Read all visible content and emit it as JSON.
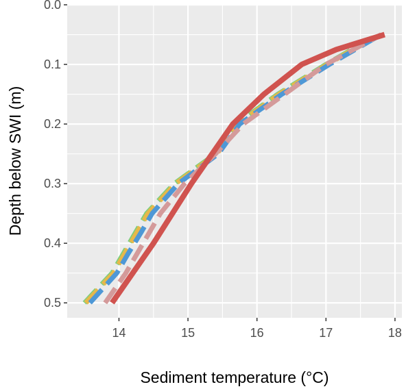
{
  "chart_data": {
    "type": "line",
    "xlabel": "Sediment temperature (°C)",
    "ylabel": "Depth below SWI (m)",
    "xlim": [
      13.25,
      18.1
    ],
    "ylim": [
      0.0,
      0.525
    ],
    "y_reversed": true,
    "x_ticks": [
      14,
      15,
      16,
      17,
      18
    ],
    "y_ticks": [
      0.0,
      0.1,
      0.2,
      0.3,
      0.4,
      0.5
    ],
    "y_tick_labels": [
      "0.0",
      "0.1",
      "0.2",
      "0.3",
      "0.4",
      "0.5"
    ],
    "grid": true,
    "legend": "none",
    "series": [
      {
        "color": "#7ccf7e",
        "style": "dashed",
        "points": [
          [
            13.5,
            0.5
          ],
          [
            13.9,
            0.45
          ],
          [
            14.05,
            0.42
          ],
          [
            14.25,
            0.38
          ],
          [
            14.4,
            0.35
          ],
          [
            14.8,
            0.3
          ],
          [
            15.4,
            0.25
          ],
          [
            15.7,
            0.2
          ],
          [
            16.3,
            0.15
          ],
          [
            17.0,
            0.1
          ],
          [
            17.75,
            0.05
          ]
        ]
      },
      {
        "color": "#e6b84a",
        "style": "dashed",
        "points": [
          [
            13.52,
            0.5
          ],
          [
            13.92,
            0.45
          ],
          [
            14.07,
            0.42
          ],
          [
            14.27,
            0.38
          ],
          [
            14.42,
            0.35
          ],
          [
            14.82,
            0.3
          ],
          [
            15.42,
            0.25
          ],
          [
            15.72,
            0.2
          ],
          [
            16.32,
            0.15
          ],
          [
            17.02,
            0.1
          ],
          [
            17.77,
            0.05
          ]
        ]
      },
      {
        "color": "#4e98d6",
        "style": "dashed",
        "points": [
          [
            13.58,
            0.5
          ],
          [
            13.97,
            0.45
          ],
          [
            14.12,
            0.42
          ],
          [
            14.33,
            0.38
          ],
          [
            14.48,
            0.35
          ],
          [
            14.86,
            0.3
          ],
          [
            15.44,
            0.25
          ],
          [
            15.75,
            0.2
          ],
          [
            16.36,
            0.15
          ],
          [
            17.05,
            0.1
          ],
          [
            17.8,
            0.05
          ]
        ]
      },
      {
        "color": "#d49a9a",
        "style": "dashed",
        "points": [
          [
            13.8,
            0.5
          ],
          [
            14.1,
            0.45
          ],
          [
            14.35,
            0.4
          ],
          [
            14.6,
            0.35
          ],
          [
            14.95,
            0.3
          ],
          [
            15.4,
            0.25
          ],
          [
            15.8,
            0.2
          ],
          [
            16.4,
            0.15
          ],
          [
            17.0,
            0.1
          ],
          [
            17.8,
            0.05
          ]
        ]
      },
      {
        "color": "#d0534f",
        "style": "solid",
        "points": [
          [
            13.9,
            0.5
          ],
          [
            14.5,
            0.4
          ],
          [
            15.05,
            0.3
          ],
          [
            15.65,
            0.2
          ],
          [
            16.1,
            0.15
          ],
          [
            16.65,
            0.1
          ],
          [
            17.15,
            0.075
          ],
          [
            17.85,
            0.05
          ]
        ]
      }
    ]
  }
}
